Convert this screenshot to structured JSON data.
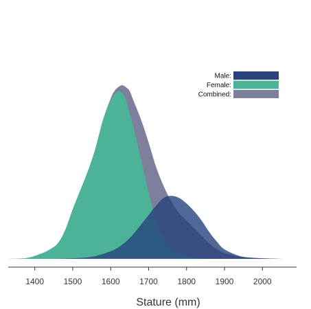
{
  "chart_data": {
    "type": "area",
    "title": "",
    "xlabel": "Stature (mm)",
    "ylabel": "",
    "xlim": [
      1330,
      2090
    ],
    "ylim": [
      0,
      0.0095
    ],
    "xticks": [
      1400,
      1500,
      1600,
      1700,
      1800,
      1900,
      2000
    ],
    "xtick_labels": [
      "1400",
      "1500",
      "1600",
      "1700",
      "1800",
      "1900",
      "2000"
    ],
    "grid": false,
    "legend": "top-right",
    "series": [
      {
        "name": "Combined",
        "color": "#7e7f9c",
        "x": [
          1330,
          1380,
          1420,
          1440,
          1460,
          1480,
          1500,
          1520,
          1540,
          1560,
          1580,
          1600,
          1610,
          1620,
          1630,
          1640,
          1650,
          1660,
          1680,
          1700,
          1720,
          1740,
          1760,
          1780,
          1800,
          1820,
          1840,
          1860,
          1880,
          1900,
          1940,
          1980,
          2020,
          2060,
          2090
        ],
        "y": [
          0.0,
          5e-05,
          0.0003,
          0.0005,
          0.0008,
          0.0015,
          0.0026,
          0.0036,
          0.0046,
          0.0058,
          0.0073,
          0.0084,
          0.0088,
          0.009,
          0.0091,
          0.009,
          0.0088,
          0.0083,
          0.0073,
          0.0061,
          0.0048,
          0.0038,
          0.003,
          0.0024,
          0.002,
          0.0016,
          0.0012,
          0.0008,
          0.0005,
          0.0003,
          0.00012,
          5e-05,
          2e-05,
          0.0,
          0.0
        ]
      },
      {
        "name": "Female",
        "color": "#4db398",
        "x": [
          1330,
          1380,
          1420,
          1440,
          1460,
          1480,
          1500,
          1520,
          1540,
          1560,
          1580,
          1600,
          1610,
          1620,
          1630,
          1640,
          1660,
          1680,
          1700,
          1720,
          1740,
          1760,
          1780,
          1800,
          1820,
          1840,
          1880,
          1920
        ],
        "y": [
          0.0,
          5e-05,
          0.0003,
          0.0005,
          0.0008,
          0.0015,
          0.0026,
          0.0036,
          0.0046,
          0.0058,
          0.0073,
          0.0083,
          0.0086,
          0.0088,
          0.0087,
          0.0083,
          0.0069,
          0.0052,
          0.0035,
          0.002,
          0.0011,
          0.0006,
          0.0003,
          0.00015,
          6e-05,
          2e-05,
          0.0,
          0.0
        ]
      },
      {
        "name": "Male",
        "color": "#27427d",
        "x": [
          1450,
          1520,
          1560,
          1600,
          1620,
          1640,
          1660,
          1680,
          1700,
          1720,
          1740,
          1760,
          1780,
          1800,
          1820,
          1840,
          1860,
          1880,
          1900,
          1940,
          1980,
          2020,
          2060,
          2090
        ],
        "y": [
          0.0,
          5e-05,
          0.00015,
          0.0004,
          0.0006,
          0.0009,
          0.0013,
          0.0018,
          0.0023,
          0.0028,
          0.0032,
          0.0033,
          0.0032,
          0.0029,
          0.0025,
          0.002,
          0.0014,
          0.0009,
          0.0005,
          0.00015,
          5e-05,
          2e-05,
          0.0,
          0.0
        ]
      }
    ],
    "legend_entries": [
      "Male:",
      "Female:",
      "Combined:"
    ],
    "legend_colors": [
      "#27427d",
      "#4db398",
      "#7e7f9c"
    ]
  }
}
